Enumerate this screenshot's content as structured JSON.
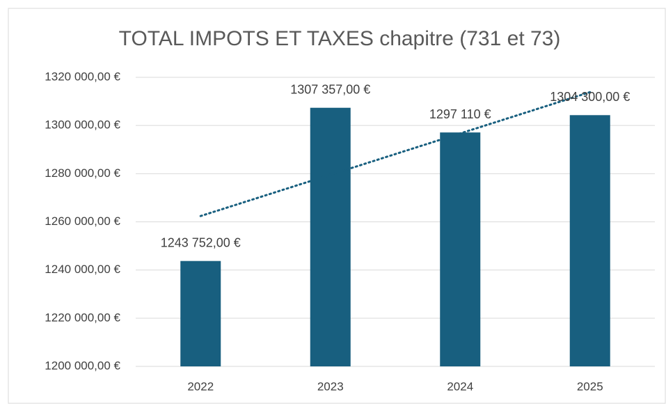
{
  "chart_data": {
    "type": "bar",
    "title": "TOTAL IMPOTS ET TAXES chapitre (731 et 73)",
    "categories": [
      "2022",
      "2023",
      "2024",
      "2025"
    ],
    "values": [
      1243752,
      1307357,
      1297110,
      1304300
    ],
    "value_labels": [
      "1243 752,00 €",
      "1307 357,00 €",
      "1297 110 €",
      "1304 300,00 €"
    ],
    "color": "#185f7f",
    "trendline": "linear",
    "ylim": [
      1200000,
      1320000
    ],
    "yticks": [
      {
        "value": 1200000,
        "label": "1200 000,00 €"
      },
      {
        "value": 1220000,
        "label": "1220 000,00 €"
      },
      {
        "value": 1240000,
        "label": "1240 000,00 €"
      },
      {
        "value": 1260000,
        "label": "1260 000,00 €"
      },
      {
        "value": 1280000,
        "label": "1280 000,00 €"
      },
      {
        "value": 1300000,
        "label": "1300 000,00 €"
      },
      {
        "value": 1320000,
        "label": "1320 000,00 €"
      }
    ],
    "grid": true
  }
}
